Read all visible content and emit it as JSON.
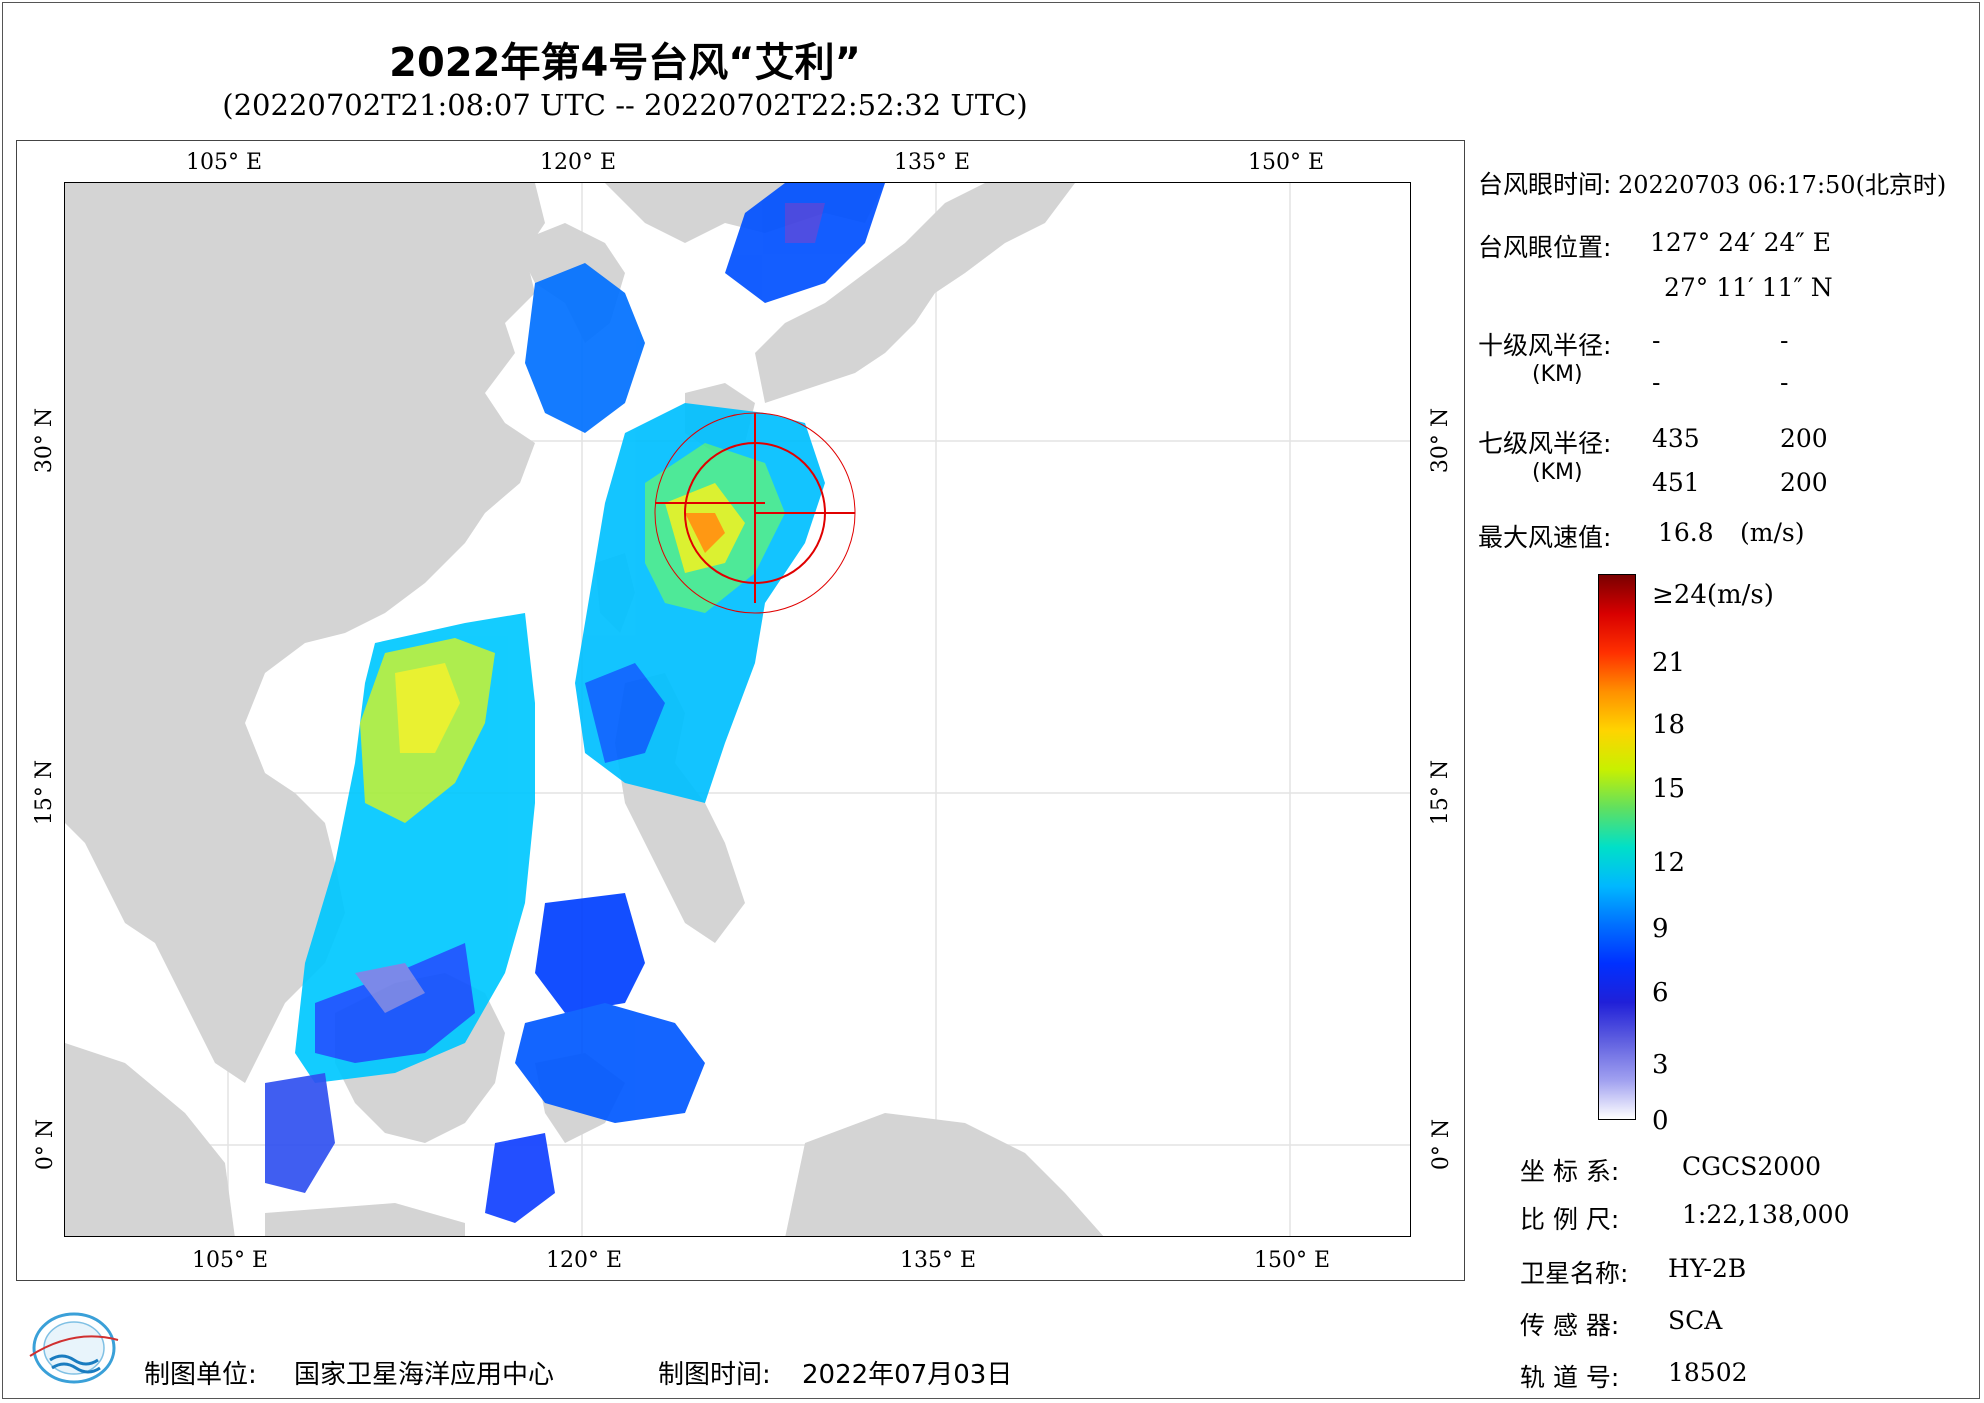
{
  "title": "2022年第4号台风“艾利”",
  "subtitle": "(20220702T21:08:07 UTC -- 20220702T22:52:32 UTC)",
  "axes": {
    "lon_top": [
      "105° E",
      "120° E",
      "135° E",
      "150° E"
    ],
    "lon_bottom": [
      "105° E",
      "120° E",
      "135° E",
      "150° E"
    ],
    "lat_left": [
      "30° N",
      "15° N",
      "0° N"
    ],
    "lat_right": [
      "30° N",
      "15° N",
      "0° N"
    ]
  },
  "info": {
    "eye_time_label": "台风眼时间:",
    "eye_time_value": "20220703 06:17:50(北京时)",
    "eye_pos_label": "台风眼位置:",
    "eye_lon": "127° 24′ 24″ E",
    "eye_lat": "27° 11′ 11″ N",
    "r10_label": "十级风半径:",
    "r10_unit": "(KM)",
    "r10_values": [
      "-",
      "-",
      "-",
      "-"
    ],
    "r7_label": "七级风半径:",
    "r7_unit": "(KM)",
    "r7_values": [
      "435",
      "200",
      "451",
      "200"
    ],
    "max_wind_label": "最大风速值:",
    "max_wind_value": "16.8",
    "max_wind_unit": "(m/s)"
  },
  "colorbar": {
    "labels": [
      "≥24(m/s)",
      "21",
      "18",
      "15",
      "12",
      "9",
      "6",
      "3",
      "0"
    ],
    "colors": [
      "#7a0000",
      "#d80000",
      "#ff3000",
      "#ff9000",
      "#ffd400",
      "#c8f000",
      "#60e060",
      "#00e0c8",
      "#00b8ff",
      "#0070ff",
      "#0030ff",
      "#2020d8",
      "#6060e0",
      "#a0a0f0",
      "#ffffff"
    ]
  },
  "meta": {
    "crs_label": "坐 标 系:",
    "crs_value": "CGCS2000",
    "scale_label": "比 例 尺:",
    "scale_value": "1:22,138,000",
    "satellite_label": "卫星名称:",
    "satellite_value": "HY-2B",
    "sensor_label": "传 感 器:",
    "sensor_value": "SCA",
    "orbit_label": "轨 道 号:",
    "orbit_value": "18502"
  },
  "footer": {
    "unit_label": "制图单位:",
    "unit_value": "国家卫星海洋应用中心",
    "time_label": "制图时间:",
    "time_value": "2022年07月03日"
  },
  "map_colors": {
    "land": "#d4d4d4",
    "ocean": "#ffffff",
    "grid": "#e6e6e6",
    "track_marker": "#e00000"
  }
}
